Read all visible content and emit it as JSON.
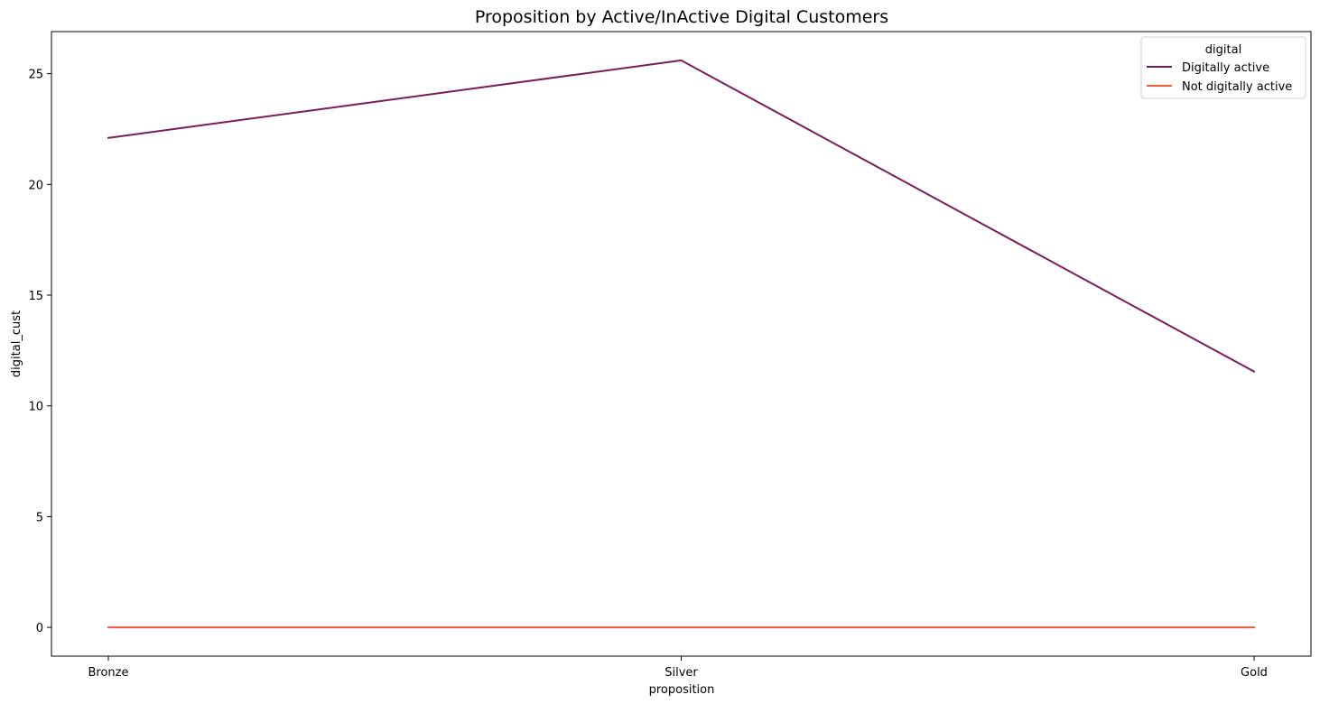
{
  "chart_data": {
    "type": "line",
    "title": "Proposition by Active/InActive Digital Customers",
    "xlabel": "proposition",
    "ylabel": "digital_cust",
    "categories": [
      "Bronze",
      "Silver",
      "Gold"
    ],
    "ylim": [
      -1.3,
      26.9
    ],
    "yticks": [
      0,
      5,
      10,
      15,
      20,
      25
    ],
    "grid": false,
    "legend": {
      "title": "digital",
      "placement": "top-right"
    },
    "series": [
      {
        "name": "Digitally active",
        "color": "#7a1c5a",
        "values": [
          22.1,
          25.6,
          11.55
        ]
      },
      {
        "name": "Not digitally active",
        "color": "#f05a3c",
        "values": [
          0,
          0,
          0
        ]
      }
    ]
  }
}
